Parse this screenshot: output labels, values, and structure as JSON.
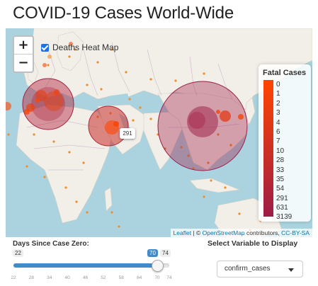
{
  "page": {
    "title": "COVID-19 Cases World-Wide"
  },
  "map": {
    "zoom_in": "+",
    "zoom_out": "−",
    "layer_toggle": {
      "label": "Deaths Heat Map",
      "checked": true
    },
    "tooltip": "291",
    "attribution": {
      "leaflet": "Leaflet",
      "separator": " | © ",
      "osm": "OpenStreetMap",
      "contributors": " contributors, ",
      "license": "CC-BY-SA"
    }
  },
  "legend": {
    "title": "Fatal Cases",
    "labels": [
      "0",
      "1",
      "2",
      "3",
      "4",
      "6",
      "7",
      "10",
      "28",
      "33",
      "35",
      "54",
      "291",
      "631",
      "3139"
    ],
    "colors": [
      "#ff4500",
      "#f84305",
      "#f1400a",
      "#ea3d0f",
      "#e33a14",
      "#dc3719",
      "#d5341e",
      "#ce3123",
      "#c72e28",
      "#c02b2d",
      "#b92832",
      "#b22537",
      "#ab223c",
      "#a41f41",
      "#9d1c46"
    ]
  },
  "slider": {
    "label": "Days Since Case Zero:",
    "min": "22",
    "max": "74",
    "value": "70",
    "fraction": 0.923,
    "ticks": [
      "22",
      "28",
      "34",
      "40",
      "46",
      "52",
      "58",
      "64",
      "70",
      "74"
    ]
  },
  "select": {
    "label": "Select Variable to Display",
    "value": "confirm_cases"
  }
}
